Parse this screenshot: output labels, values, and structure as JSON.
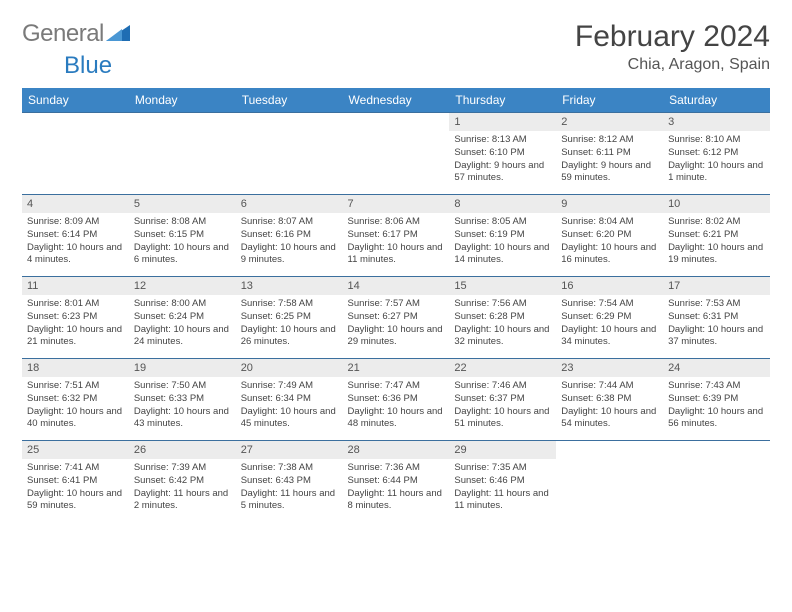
{
  "brand": {
    "word1": "General",
    "word2": "Blue"
  },
  "title": "February 2024",
  "location": "Chia, Aragon, Spain",
  "colors": {
    "header_bg": "#3b84c4",
    "header_text": "#ffffff",
    "daynum_bg": "#ececec",
    "row_border": "#3b6f9e",
    "logo_gray": "#7a7a7a",
    "logo_blue": "#2a7bbf"
  },
  "dayHeaders": [
    "Sunday",
    "Monday",
    "Tuesday",
    "Wednesday",
    "Thursday",
    "Friday",
    "Saturday"
  ],
  "weeks": [
    [
      null,
      null,
      null,
      null,
      {
        "n": "1",
        "sr": "Sunrise: 8:13 AM",
        "ss": "Sunset: 6:10 PM",
        "dl": "Daylight: 9 hours and 57 minutes."
      },
      {
        "n": "2",
        "sr": "Sunrise: 8:12 AM",
        "ss": "Sunset: 6:11 PM",
        "dl": "Daylight: 9 hours and 59 minutes."
      },
      {
        "n": "3",
        "sr": "Sunrise: 8:10 AM",
        "ss": "Sunset: 6:12 PM",
        "dl": "Daylight: 10 hours and 1 minute."
      }
    ],
    [
      {
        "n": "4",
        "sr": "Sunrise: 8:09 AM",
        "ss": "Sunset: 6:14 PM",
        "dl": "Daylight: 10 hours and 4 minutes."
      },
      {
        "n": "5",
        "sr": "Sunrise: 8:08 AM",
        "ss": "Sunset: 6:15 PM",
        "dl": "Daylight: 10 hours and 6 minutes."
      },
      {
        "n": "6",
        "sr": "Sunrise: 8:07 AM",
        "ss": "Sunset: 6:16 PM",
        "dl": "Daylight: 10 hours and 9 minutes."
      },
      {
        "n": "7",
        "sr": "Sunrise: 8:06 AM",
        "ss": "Sunset: 6:17 PM",
        "dl": "Daylight: 10 hours and 11 minutes."
      },
      {
        "n": "8",
        "sr": "Sunrise: 8:05 AM",
        "ss": "Sunset: 6:19 PM",
        "dl": "Daylight: 10 hours and 14 minutes."
      },
      {
        "n": "9",
        "sr": "Sunrise: 8:04 AM",
        "ss": "Sunset: 6:20 PM",
        "dl": "Daylight: 10 hours and 16 minutes."
      },
      {
        "n": "10",
        "sr": "Sunrise: 8:02 AM",
        "ss": "Sunset: 6:21 PM",
        "dl": "Daylight: 10 hours and 19 minutes."
      }
    ],
    [
      {
        "n": "11",
        "sr": "Sunrise: 8:01 AM",
        "ss": "Sunset: 6:23 PM",
        "dl": "Daylight: 10 hours and 21 minutes."
      },
      {
        "n": "12",
        "sr": "Sunrise: 8:00 AM",
        "ss": "Sunset: 6:24 PM",
        "dl": "Daylight: 10 hours and 24 minutes."
      },
      {
        "n": "13",
        "sr": "Sunrise: 7:58 AM",
        "ss": "Sunset: 6:25 PM",
        "dl": "Daylight: 10 hours and 26 minutes."
      },
      {
        "n": "14",
        "sr": "Sunrise: 7:57 AM",
        "ss": "Sunset: 6:27 PM",
        "dl": "Daylight: 10 hours and 29 minutes."
      },
      {
        "n": "15",
        "sr": "Sunrise: 7:56 AM",
        "ss": "Sunset: 6:28 PM",
        "dl": "Daylight: 10 hours and 32 minutes."
      },
      {
        "n": "16",
        "sr": "Sunrise: 7:54 AM",
        "ss": "Sunset: 6:29 PM",
        "dl": "Daylight: 10 hours and 34 minutes."
      },
      {
        "n": "17",
        "sr": "Sunrise: 7:53 AM",
        "ss": "Sunset: 6:31 PM",
        "dl": "Daylight: 10 hours and 37 minutes."
      }
    ],
    [
      {
        "n": "18",
        "sr": "Sunrise: 7:51 AM",
        "ss": "Sunset: 6:32 PM",
        "dl": "Daylight: 10 hours and 40 minutes."
      },
      {
        "n": "19",
        "sr": "Sunrise: 7:50 AM",
        "ss": "Sunset: 6:33 PM",
        "dl": "Daylight: 10 hours and 43 minutes."
      },
      {
        "n": "20",
        "sr": "Sunrise: 7:49 AM",
        "ss": "Sunset: 6:34 PM",
        "dl": "Daylight: 10 hours and 45 minutes."
      },
      {
        "n": "21",
        "sr": "Sunrise: 7:47 AM",
        "ss": "Sunset: 6:36 PM",
        "dl": "Daylight: 10 hours and 48 minutes."
      },
      {
        "n": "22",
        "sr": "Sunrise: 7:46 AM",
        "ss": "Sunset: 6:37 PM",
        "dl": "Daylight: 10 hours and 51 minutes."
      },
      {
        "n": "23",
        "sr": "Sunrise: 7:44 AM",
        "ss": "Sunset: 6:38 PM",
        "dl": "Daylight: 10 hours and 54 minutes."
      },
      {
        "n": "24",
        "sr": "Sunrise: 7:43 AM",
        "ss": "Sunset: 6:39 PM",
        "dl": "Daylight: 10 hours and 56 minutes."
      }
    ],
    [
      {
        "n": "25",
        "sr": "Sunrise: 7:41 AM",
        "ss": "Sunset: 6:41 PM",
        "dl": "Daylight: 10 hours and 59 minutes."
      },
      {
        "n": "26",
        "sr": "Sunrise: 7:39 AM",
        "ss": "Sunset: 6:42 PM",
        "dl": "Daylight: 11 hours and 2 minutes."
      },
      {
        "n": "27",
        "sr": "Sunrise: 7:38 AM",
        "ss": "Sunset: 6:43 PM",
        "dl": "Daylight: 11 hours and 5 minutes."
      },
      {
        "n": "28",
        "sr": "Sunrise: 7:36 AM",
        "ss": "Sunset: 6:44 PM",
        "dl": "Daylight: 11 hours and 8 minutes."
      },
      {
        "n": "29",
        "sr": "Sunrise: 7:35 AM",
        "ss": "Sunset: 6:46 PM",
        "dl": "Daylight: 11 hours and 11 minutes."
      },
      null,
      null
    ]
  ]
}
